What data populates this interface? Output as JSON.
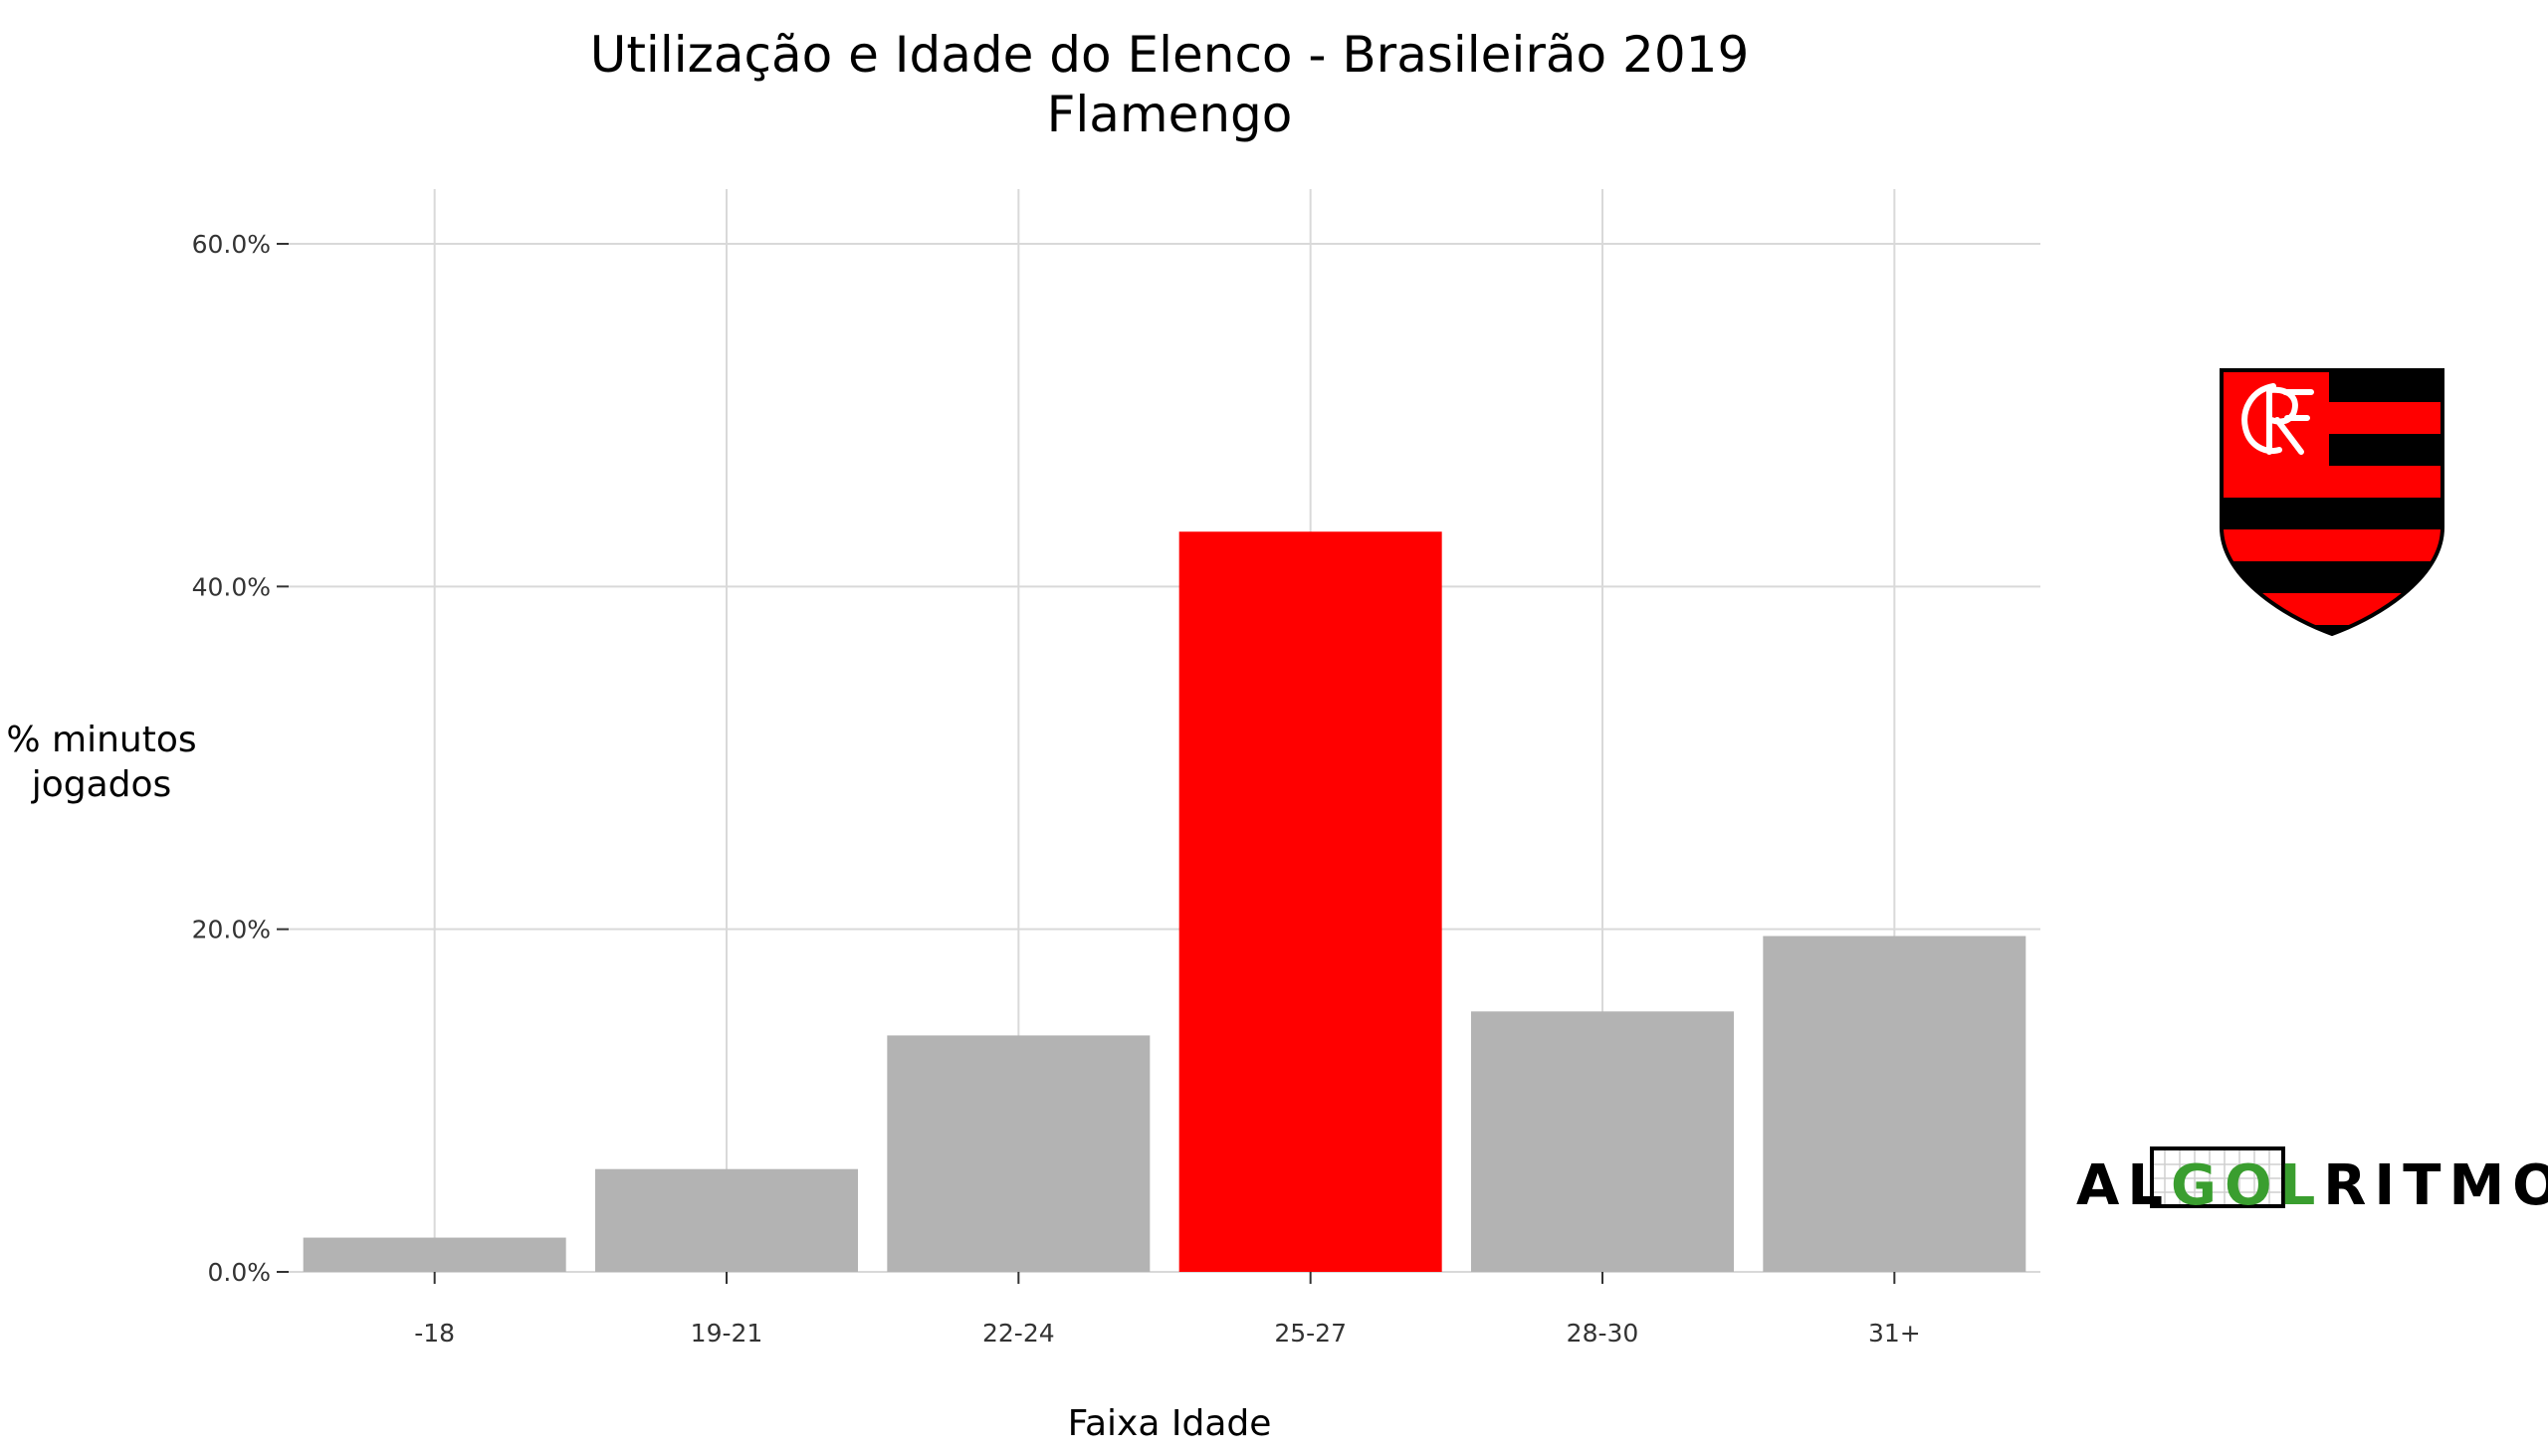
{
  "chart_data": {
    "type": "bar",
    "title": "Utilização e Idade do Elenco - Brasileirão 2019",
    "subtitle": "Flamengo",
    "xlabel": "Faixa Idade",
    "ylabel_lines": [
      "% minutos",
      "jogados"
    ],
    "categories": [
      "-18",
      "19-21",
      "22-24",
      "25-27",
      "28-30",
      "31+"
    ],
    "values": [
      2.0,
      6.0,
      13.8,
      43.2,
      15.2,
      19.6
    ],
    "highlight_index": 3,
    "ylim": [
      0,
      60
    ],
    "yticks": [
      0,
      20,
      40,
      60
    ],
    "ytick_labels": [
      "0.0%",
      "20.0%",
      "40.0%",
      "60.0%"
    ],
    "grid": true,
    "colors": {
      "bar": "#b3b3b3",
      "highlight": "#ff0000",
      "grid": "#d9d9d9"
    }
  },
  "logo": {
    "parts": [
      "AL",
      "GOL",
      "RITMO"
    ],
    "colors": {
      "text": "#000000",
      "accent": "#3a9e2f"
    }
  },
  "crest": {
    "monogram": "CRF",
    "colors": {
      "red": "#ff0000",
      "black": "#000000",
      "white": "#ffffff"
    }
  }
}
